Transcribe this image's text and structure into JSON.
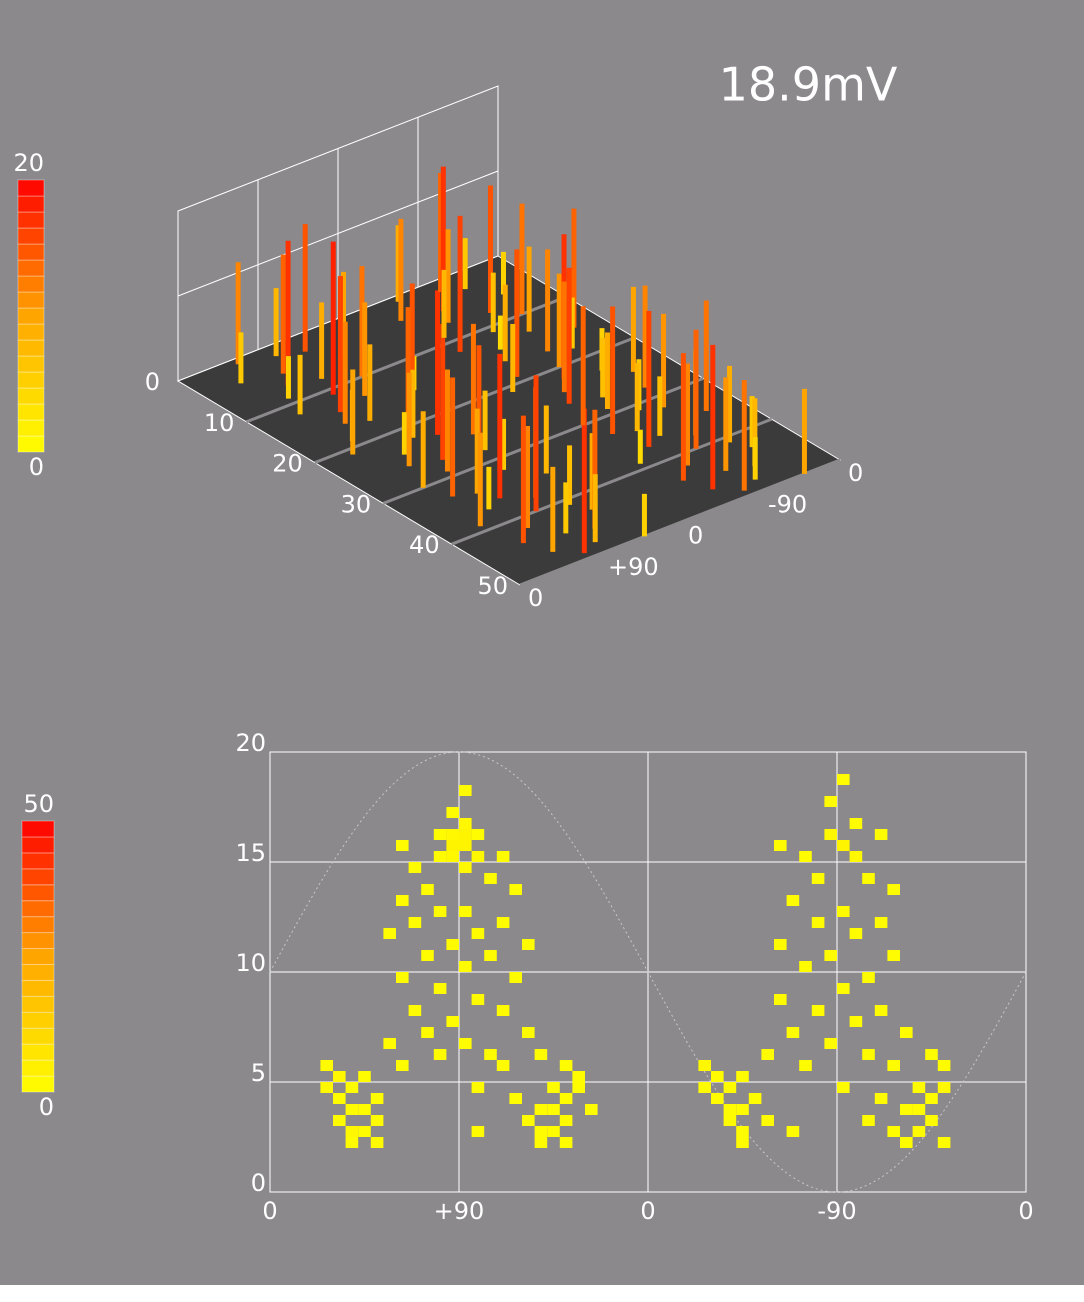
{
  "reading": "18.9mV",
  "chart_data": [
    {
      "type": "bar3d",
      "colormap": [
        "#ffff00",
        "#ffa500",
        "#ff0000"
      ],
      "zlim": [
        0,
        20
      ],
      "zticks": [
        0
      ],
      "colorbar_ticks": [
        0,
        20
      ],
      "depthlim": [
        0,
        50
      ],
      "depthticks": [
        10,
        20,
        30,
        40,
        50
      ],
      "xlim": [
        0,
        360
      ],
      "xticks": [
        0,
        {
          "value": 90,
          "label": "+90"
        },
        {
          "value": 180,
          "label": "0"
        },
        {
          "value": 270,
          "label": "-90"
        },
        {
          "value": 360,
          "label": "0"
        }
      ],
      "depth": [
        1,
        2,
        3,
        4,
        5,
        6,
        7,
        8,
        9,
        10,
        11,
        12,
        13,
        14,
        15,
        16,
        17,
        18,
        19,
        20,
        21,
        22,
        23,
        24,
        25,
        26,
        27,
        28,
        29,
        30,
        31,
        32,
        33,
        34,
        35,
        36,
        37,
        38,
        39,
        40,
        41,
        42,
        43,
        44,
        45,
        46,
        47,
        48,
        49,
        50,
        1,
        2,
        3,
        4,
        5,
        6,
        7,
        8,
        9,
        10,
        11,
        12,
        13,
        14,
        15,
        16,
        17,
        18,
        19,
        20,
        21,
        22,
        23,
        24,
        25,
        26,
        27,
        28,
        29,
        30,
        31,
        32,
        33,
        34,
        35,
        36,
        37,
        38,
        39,
        40,
        41,
        42,
        43,
        44,
        45,
        46,
        47,
        48,
        49,
        50
      ],
      "x": [
        60,
        95,
        120,
        40,
        80,
        140,
        70,
        100,
        55,
        130,
        90,
        45,
        110,
        75,
        150,
        65,
        85,
        125,
        50,
        105,
        35,
        95,
        115,
        70,
        140,
        60,
        90,
        130,
        80,
        45,
        100,
        120,
        55,
        75,
        145,
        85,
        65,
        110,
        40,
        95,
        125,
        70,
        135,
        50,
        90,
        115,
        60,
        100,
        80,
        140,
        240,
        280,
        300,
        220,
        260,
        320,
        250,
        290,
        230,
        310,
        270,
        225,
        295,
        255,
        330,
        245,
        285,
        305,
        235,
        275,
        215,
        265,
        300,
        250,
        320,
        240,
        270,
        310,
        260,
        225,
        280,
        300,
        235,
        255,
        325,
        265,
        245,
        290,
        220,
        275,
        305,
        250,
        315,
        230,
        270,
        295,
        240,
        280,
        260,
        320
      ],
      "values": [
        12,
        8,
        15,
        6,
        14,
        10,
        17,
        9,
        5,
        13,
        18,
        7,
        11,
        16,
        4,
        12,
        9,
        15,
        6,
        14,
        10,
        8,
        17,
        5,
        13,
        11,
        16,
        7,
        12,
        9,
        15,
        6,
        14,
        10,
        8,
        17,
        5,
        13,
        11,
        16,
        7,
        12,
        9,
        15,
        6,
        14,
        10,
        8,
        17,
        5,
        9,
        14,
        6,
        12,
        17,
        5,
        11,
        15,
        8,
        13,
        7,
        16,
        10,
        4,
        14,
        9,
        12,
        6,
        15,
        11,
        8,
        17,
        5,
        13,
        10,
        16,
        7,
        12,
        9,
        14,
        6,
        11,
        15,
        8,
        13,
        7,
        16,
        10,
        4,
        14,
        9,
        12,
        6,
        15,
        11,
        8,
        17,
        5,
        13,
        10
      ]
    },
    {
      "type": "heatmap",
      "colormap": [
        "#ffff00",
        "#ffa500",
        "#ff0000"
      ],
      "colorbar_ticks": [
        0,
        50
      ],
      "cell_size": [
        6,
        0.5
      ],
      "xlim": [
        0,
        360
      ],
      "xticks": [
        0,
        {
          "value": 90,
          "label": "+90"
        },
        {
          "value": 180,
          "label": "0"
        },
        {
          "value": 270,
          "label": "-90"
        },
        {
          "value": 360,
          "label": "0"
        }
      ],
      "ylim": [
        0,
        20
      ],
      "yticks": [
        0,
        5,
        10,
        15,
        20
      ],
      "grid": true,
      "cells": [
        [
          93,
          18.25,
          1
        ],
        [
          87,
          17.25,
          1
        ],
        [
          93,
          16.75,
          2
        ],
        [
          81,
          16.25,
          1
        ],
        [
          87,
          16.25,
          2
        ],
        [
          93,
          16.25,
          3
        ],
        [
          99,
          16.25,
          1
        ],
        [
          87,
          15.75,
          3
        ],
        [
          93,
          15.75,
          3
        ],
        [
          99,
          15.25,
          2
        ],
        [
          81,
          15.25,
          1
        ],
        [
          87,
          15.25,
          2
        ],
        [
          93,
          14.75,
          2
        ],
        [
          63,
          15.75,
          1
        ],
        [
          69,
          14.75,
          1
        ],
        [
          111,
          15.25,
          1
        ],
        [
          105,
          14.25,
          1
        ],
        [
          75,
          13.75,
          1
        ],
        [
          63,
          13.25,
          1
        ],
        [
          117,
          13.75,
          1
        ],
        [
          81,
          12.75,
          1
        ],
        [
          93,
          12.75,
          1
        ],
        [
          69,
          12.25,
          1
        ],
        [
          111,
          12.25,
          1
        ],
        [
          99,
          11.75,
          1
        ],
        [
          87,
          11.25,
          1
        ],
        [
          57,
          11.75,
          1
        ],
        [
          123,
          11.25,
          1
        ],
        [
          75,
          10.75,
          1
        ],
        [
          105,
          10.75,
          1
        ],
        [
          63,
          9.75,
          1
        ],
        [
          93,
          10.25,
          1
        ],
        [
          117,
          9.75,
          1
        ],
        [
          81,
          9.25,
          1
        ],
        [
          99,
          8.75,
          1
        ],
        [
          69,
          8.25,
          1
        ],
        [
          111,
          8.25,
          1
        ],
        [
          87,
          7.75,
          1
        ],
        [
          75,
          7.25,
          1
        ],
        [
          123,
          7.25,
          1
        ],
        [
          93,
          6.75,
          1
        ],
        [
          57,
          6.75,
          1
        ],
        [
          105,
          6.25,
          1
        ],
        [
          81,
          6.25,
          1
        ],
        [
          129,
          6.25,
          1
        ],
        [
          63,
          5.75,
          1
        ],
        [
          111,
          5.75,
          1
        ],
        [
          27,
          5.75,
          1
        ],
        [
          33,
          5.25,
          2
        ],
        [
          45,
          5.25,
          1
        ],
        [
          141,
          5.75,
          1
        ],
        [
          147,
          5.25,
          1
        ],
        [
          27,
          4.75,
          2
        ],
        [
          39,
          4.75,
          1
        ],
        [
          99,
          4.75,
          1
        ],
        [
          135,
          4.75,
          1
        ],
        [
          147,
          4.75,
          1
        ],
        [
          33,
          4.25,
          1
        ],
        [
          51,
          4.25,
          1
        ],
        [
          117,
          4.25,
          1
        ],
        [
          141,
          4.25,
          1
        ],
        [
          39,
          3.75,
          1
        ],
        [
          45,
          3.75,
          1
        ],
        [
          129,
          3.75,
          1
        ],
        [
          135,
          3.75,
          1
        ],
        [
          153,
          3.75,
          1
        ],
        [
          33,
          3.25,
          1
        ],
        [
          51,
          3.25,
          1
        ],
        [
          123,
          3.25,
          1
        ],
        [
          141,
          3.25,
          1
        ],
        [
          39,
          2.75,
          2
        ],
        [
          45,
          2.75,
          1
        ],
        [
          99,
          2.75,
          1
        ],
        [
          129,
          2.75,
          1
        ],
        [
          135,
          2.75,
          1
        ],
        [
          39,
          2.25,
          1
        ],
        [
          51,
          2.25,
          1
        ],
        [
          129,
          2.25,
          1
        ],
        [
          141,
          2.25,
          1
        ],
        [
          273,
          18.75,
          1
        ],
        [
          267,
          17.75,
          1
        ],
        [
          279,
          16.75,
          1
        ],
        [
          291,
          16.25,
          1
        ],
        [
          267,
          16.25,
          2
        ],
        [
          273,
          15.75,
          3
        ],
        [
          279,
          15.25,
          2
        ],
        [
          255,
          15.25,
          1
        ],
        [
          243,
          15.75,
          1
        ],
        [
          261,
          14.25,
          1
        ],
        [
          285,
          14.25,
          1
        ],
        [
          297,
          13.75,
          1
        ],
        [
          249,
          13.25,
          1
        ],
        [
          273,
          12.75,
          1
        ],
        [
          261,
          12.25,
          1
        ],
        [
          291,
          12.25,
          1
        ],
        [
          279,
          11.75,
          1
        ],
        [
          243,
          11.25,
          1
        ],
        [
          267,
          10.75,
          1
        ],
        [
          297,
          10.75,
          1
        ],
        [
          255,
          10.25,
          1
        ],
        [
          285,
          9.75,
          1
        ],
        [
          273,
          9.25,
          1
        ],
        [
          243,
          8.75,
          1
        ],
        [
          261,
          8.25,
          1
        ],
        [
          291,
          8.25,
          1
        ],
        [
          279,
          7.75,
          1
        ],
        [
          249,
          7.25,
          1
        ],
        [
          303,
          7.25,
          1
        ],
        [
          267,
          6.75,
          1
        ],
        [
          285,
          6.25,
          1
        ],
        [
          237,
          6.25,
          1
        ],
        [
          255,
          5.75,
          1
        ],
        [
          297,
          5.75,
          1
        ],
        [
          315,
          6.25,
          1
        ],
        [
          207,
          5.75,
          2
        ],
        [
          213,
          5.25,
          1
        ],
        [
          225,
          5.25,
          1
        ],
        [
          321,
          5.75,
          1
        ],
        [
          207,
          4.75,
          1
        ],
        [
          219,
          4.75,
          1
        ],
        [
          273,
          4.75,
          1
        ],
        [
          309,
          4.75,
          1
        ],
        [
          321,
          4.75,
          2
        ],
        [
          213,
          4.25,
          1
        ],
        [
          231,
          4.25,
          1
        ],
        [
          291,
          4.25,
          1
        ],
        [
          315,
          4.25,
          1
        ],
        [
          219,
          3.75,
          1
        ],
        [
          225,
          3.75,
          1
        ],
        [
          303,
          3.75,
          1
        ],
        [
          309,
          3.75,
          1
        ],
        [
          219,
          3.25,
          1
        ],
        [
          237,
          3.25,
          1
        ],
        [
          285,
          3.25,
          1
        ],
        [
          315,
          3.25,
          1
        ],
        [
          225,
          2.75,
          1
        ],
        [
          249,
          2.75,
          1
        ],
        [
          297,
          2.75,
          1
        ],
        [
          309,
          2.75,
          1
        ],
        [
          225,
          2.25,
          1
        ],
        [
          303,
          2.25,
          1
        ],
        [
          321,
          2.25,
          1
        ]
      ]
    }
  ]
}
